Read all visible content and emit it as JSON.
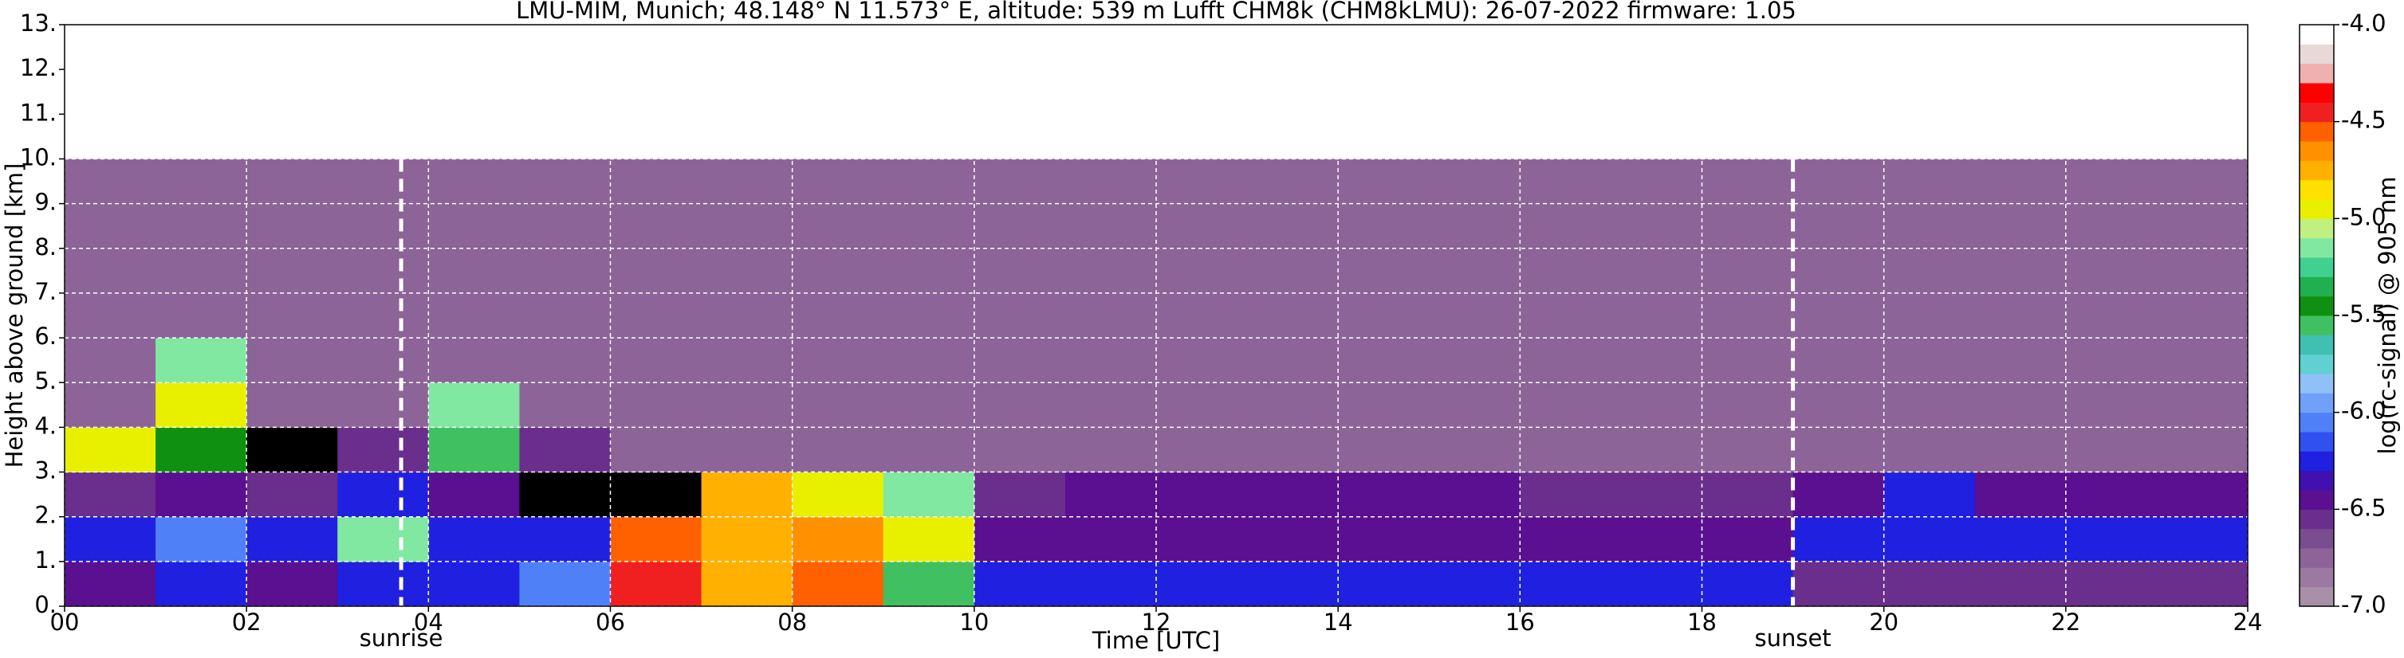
{
  "chart_data": {
    "type": "heatmap",
    "title": "LMU-MIM, Munich; 48.148° N 11.573° E, altitude: 539 m    Lufft CHM8k (CHM8kLMU): 26-07-2022    firmware: 1.05",
    "x_label": "Time [UTC]",
    "y_label": "Height above ground [km]",
    "colorbar_label": "log(rc-signal) @ 905 nm",
    "xlim": [
      0,
      24
    ],
    "ylim": [
      0,
      13
    ],
    "xticks": [
      {
        "value": 0,
        "label": "00"
      },
      {
        "value": 2,
        "label": "02"
      },
      {
        "value": 4,
        "label": "04"
      },
      {
        "value": 6,
        "label": "06"
      },
      {
        "value": 8,
        "label": "08"
      },
      10,
      12,
      14,
      16,
      18,
      20,
      22,
      24
    ],
    "yticks": [
      {
        "value": 0,
        "label": "0."
      },
      {
        "value": 1,
        "label": "1."
      },
      {
        "value": 2,
        "label": "2."
      },
      {
        "value": 3,
        "label": "3."
      },
      {
        "value": 4,
        "label": "4."
      },
      {
        "value": 5,
        "label": "5."
      },
      {
        "value": 6,
        "label": "6."
      },
      {
        "value": 7,
        "label": "7."
      },
      {
        "value": 8,
        "label": "8."
      },
      {
        "value": 9,
        "label": "9."
      },
      {
        "value": 10,
        "label": "10."
      },
      {
        "value": 11,
        "label": "11."
      },
      {
        "value": 12,
        "label": "12."
      },
      {
        "value": 13,
        "label": "13."
      }
    ],
    "grid": true,
    "x_bins": [
      0,
      1,
      2,
      3,
      4,
      5,
      6,
      7,
      8,
      9,
      10,
      11,
      12,
      13,
      14,
      15,
      16,
      17,
      18,
      19,
      20,
      21,
      22,
      23,
      24
    ],
    "y_bins": [
      0,
      1,
      2,
      3,
      4,
      5,
      6,
      7,
      8,
      9,
      10
    ],
    "z": [
      [
        -6.4,
        -6.3,
        -6.4,
        -6.3,
        -6.2,
        -6.1,
        -4.5,
        -4.8,
        -4.6,
        -5.6,
        -6.3,
        -6.3,
        -6.3,
        -6.3,
        -6.3,
        -6.2,
        -6.3,
        -6.3,
        -6.3,
        -6.6,
        -6.6,
        -6.6,
        -6.6,
        -6.6
      ],
      [
        -6.2,
        -6.1,
        -6.2,
        -5.2,
        -6.3,
        -6.3,
        -4.6,
        -4.8,
        -4.7,
        -5.0,
        -6.5,
        -6.5,
        -6.5,
        -6.5,
        -6.4,
        -6.4,
        -6.4,
        -6.4,
        -6.4,
        -6.3,
        -6.3,
        -6.3,
        -6.3,
        -6.3
      ],
      [
        -6.6,
        -6.4,
        -6.6,
        -6.2,
        -6.4,
        null,
        null,
        -4.8,
        -4.9,
        -5.2,
        -6.6,
        -6.5,
        -6.5,
        -6.5,
        -6.5,
        -6.5,
        -6.6,
        -6.6,
        -6.6,
        -6.4,
        -6.2,
        -6.4,
        -6.5,
        -6.5
      ],
      [
        -5.0,
        -5.4,
        null,
        -6.6,
        -5.6,
        -6.6,
        -6.7,
        -6.7,
        -6.7,
        -6.7,
        -6.8,
        -6.8,
        -6.8,
        -6.8,
        -6.8,
        -6.8,
        -6.8,
        -6.8,
        -6.8,
        -6.8,
        -6.8,
        -6.8,
        -6.8,
        -6.8
      ],
      [
        -6.8,
        -5.0,
        -6.8,
        -6.8,
        -5.2,
        -6.8,
        -6.8,
        -6.8,
        -6.8,
        -6.8,
        -6.8,
        -6.8,
        -6.8,
        -6.8,
        -6.8,
        -6.8,
        -6.8,
        -6.8,
        -6.8,
        -6.8,
        -6.8,
        -6.8,
        -6.8,
        -6.8
      ],
      [
        -6.8,
        -5.2,
        -6.8,
        -6.8,
        -6.8,
        -6.8,
        -6.8,
        -6.8,
        -6.8,
        -6.8,
        -6.8,
        -6.8,
        -6.8,
        -6.8,
        -6.8,
        -6.8,
        -6.8,
        -6.8,
        -6.8,
        -6.8,
        -6.8,
        -6.8,
        -6.8,
        -6.8
      ],
      [
        -6.8,
        -6.8,
        -6.8,
        -6.8,
        -6.8,
        -6.8,
        -6.8,
        -6.8,
        -6.8,
        -6.8,
        -6.8,
        -6.8,
        -6.8,
        -6.8,
        -6.8,
        -6.8,
        -6.8,
        -6.8,
        -6.8,
        -6.8,
        -6.8,
        -6.8,
        -6.8,
        -6.8
      ],
      [
        -6.8,
        -6.8,
        -6.8,
        -6.8,
        -6.8,
        -6.8,
        -6.8,
        -6.8,
        -6.8,
        -6.8,
        -6.8,
        -6.8,
        -6.8,
        -6.8,
        -6.8,
        -6.8,
        -6.8,
        -6.8,
        -6.8,
        -6.8,
        -6.8,
        -6.8,
        -6.8,
        -6.8
      ],
      [
        -6.8,
        -6.8,
        -6.8,
        -6.8,
        -6.8,
        -6.8,
        -6.8,
        -6.8,
        -6.8,
        -6.8,
        -6.8,
        -6.8,
        -6.8,
        -6.8,
        -6.8,
        -6.8,
        -6.8,
        -6.8,
        -6.8,
        -6.8,
        -6.8,
        -6.8,
        -6.8,
        -6.8
      ],
      [
        -6.8,
        -6.8,
        -6.8,
        -6.8,
        -6.8,
        -6.8,
        -6.8,
        -6.8,
        -6.8,
        -6.8,
        -6.8,
        -6.8,
        -6.8,
        -6.8,
        -6.8,
        -6.8,
        -6.8,
        -6.8,
        -6.8,
        -6.8,
        -6.8,
        -6.8,
        -6.8,
        -6.8
      ]
    ],
    "clim": [
      -7.0,
      -4.0
    ],
    "cticks": [
      {
        "value": -7,
        "label": "-7.0"
      },
      -6.5,
      {
        "value": -6,
        "label": "-6.0"
      },
      -5.5,
      {
        "value": -5,
        "label": "-5.0"
      },
      -4.5,
      {
        "value": -4,
        "label": "-4.0"
      }
    ],
    "colormap": [
      "#a890a8",
      "#9a7aa0",
      "#8c6498",
      "#7a4c90",
      "#6a2e8c",
      "#5a1090",
      "#4010b0",
      "#2020e0",
      "#3050f0",
      "#5080f8",
      "#70a0f8",
      "#90c0f8",
      "#60d0d0",
      "#40c0b0",
      "#40c060",
      "#109010",
      "#20b050",
      "#40d090",
      "#80e8a0",
      "#c0f080",
      "#e8f000",
      "#ffe000",
      "#ffb000",
      "#ff9000",
      "#ff6000",
      "#f02020",
      "#ff0000",
      "#f0b0b0",
      "#e8d8d8",
      "#ffffff"
    ],
    "annotations": [
      {
        "text": "sunrise",
        "x": 3.7
      },
      {
        "text": "sunset",
        "x": 19.0
      }
    ]
  }
}
